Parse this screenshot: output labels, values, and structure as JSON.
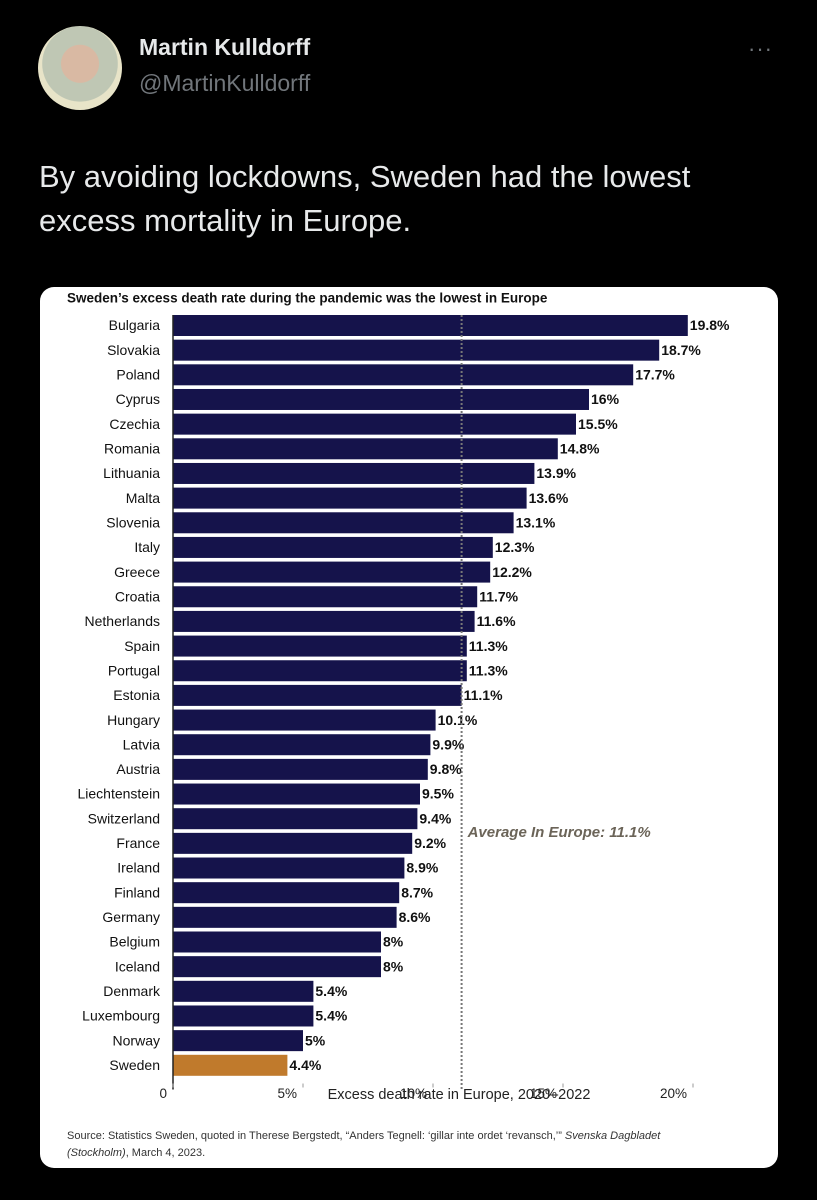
{
  "tweet": {
    "author_name": "Martin Kulldorff",
    "handle": "@MartinKulldorff",
    "text": "By avoiding lockdowns, Sweden had the lowest excess mortality in Europe."
  },
  "chart_data": {
    "type": "bar",
    "orientation": "horizontal",
    "title": "Sweden’s excess death rate during the pandemic was the lowest in Europe",
    "categories": [
      "Bulgaria",
      "Slovakia",
      "Poland",
      "Cyprus",
      "Czechia",
      "Romania",
      "Lithuania",
      "Malta",
      "Slovenia",
      "Italy",
      "Greece",
      "Croatia",
      "Netherlands",
      "Spain",
      "Portugal",
      "Estonia",
      "Hungary",
      "Latvia",
      "Austria",
      "Liechtenstein",
      "Switzerland",
      "France",
      "Ireland",
      "Finland",
      "Germany",
      "Belgium",
      "Iceland",
      "Denmark",
      "Luxembourg",
      "Norway",
      "Sweden"
    ],
    "values": [
      19.8,
      18.7,
      17.7,
      16,
      15.5,
      14.8,
      13.9,
      13.6,
      13.1,
      12.3,
      12.2,
      11.7,
      11.6,
      11.3,
      11.3,
      11.1,
      10.1,
      9.9,
      9.8,
      9.5,
      9.4,
      9.2,
      8.9,
      8.7,
      8.6,
      8,
      8,
      5.4,
      5.4,
      5,
      4.4
    ],
    "value_labels": [
      "19.8%",
      "18.7%",
      "17.7%",
      "16%",
      "15.5%",
      "14.8%",
      "13.9%",
      "13.6%",
      "13.1%",
      "12.3%",
      "12.2%",
      "11.7%",
      "11.6%",
      "11.3%",
      "11.3%",
      "11.1%",
      "10.1%",
      "9.9%",
      "9.8%",
      "9.5%",
      "9.4%",
      "9.2%",
      "8.9%",
      "8.7%",
      "8.6%",
      "8%",
      "8%",
      "5.4%",
      "5.4%",
      "5%",
      "4.4%"
    ],
    "colors": [
      "#15134b",
      "#15134b",
      "#15134b",
      "#15134b",
      "#15134b",
      "#15134b",
      "#15134b",
      "#15134b",
      "#15134b",
      "#15134b",
      "#15134b",
      "#15134b",
      "#15134b",
      "#15134b",
      "#15134b",
      "#15134b",
      "#15134b",
      "#15134b",
      "#15134b",
      "#15134b",
      "#15134b",
      "#15134b",
      "#15134b",
      "#15134b",
      "#15134b",
      "#15134b",
      "#15134b",
      "#15134b",
      "#15134b",
      "#15134b",
      "#c07a2c"
    ],
    "xlabel": "Excess death rate in Europe, 2020–2022",
    "xlim": [
      0,
      20
    ],
    "xticks": [
      0,
      {
        "value": 5,
        "label": "5%"
      },
      {
        "value": 10,
        "label": "10%"
      },
      {
        "value": 15,
        "label": "15%"
      },
      {
        "value": 20,
        "label": "20%"
      }
    ],
    "reference_line": {
      "value": 11.1,
      "label": "Average In Europe: 11.1%"
    },
    "source": [
      "Source: Statistics Sweden, quoted in Therese Bergstedt, “Anders Tegnell: ‘gillar inte ordet ‘revansch,’” ",
      "Svenska Dagbladet (Stockholm)",
      ", March 4, 2023."
    ]
  }
}
